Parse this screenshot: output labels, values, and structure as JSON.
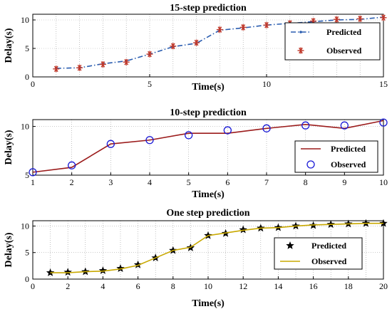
{
  "chart_data": [
    {
      "type": "line",
      "title": "15-step prediction",
      "xlabel": "Time(s)",
      "ylabel": "Delay(s)",
      "xlim": [
        0,
        15
      ],
      "ylim": [
        0,
        11
      ],
      "xticks": [
        0,
        5,
        10,
        15
      ],
      "yticks": [
        0,
        5,
        10
      ],
      "legend_position": "right",
      "series": [
        {
          "name": "Predicted",
          "color": "#2a5db0",
          "style": "dash-dot",
          "marker": "point",
          "x": [
            1,
            2,
            3,
            4,
            5,
            6,
            7,
            8,
            9,
            10,
            11,
            12,
            13,
            14,
            15
          ],
          "y": [
            1.5,
            1.6,
            2.3,
            2.8,
            4.0,
            5.3,
            5.9,
            8.2,
            8.6,
            9.1,
            9.4,
            9.7,
            10.0,
            10.1,
            10.5
          ]
        },
        {
          "name": "Observed",
          "color": "#c0392b",
          "style": "none",
          "marker": "asterisk",
          "x": [
            1,
            2,
            3,
            4,
            5,
            6,
            7,
            8,
            9,
            10,
            11,
            12,
            13,
            14,
            15
          ],
          "y": [
            1.4,
            1.6,
            2.2,
            2.6,
            4.0,
            5.4,
            6.0,
            8.3,
            8.7,
            9.1,
            9.4,
            9.8,
            10.1,
            10.2,
            10.4
          ]
        }
      ]
    },
    {
      "type": "line",
      "title": "10-step prediction",
      "xlabel": "Time(s)",
      "ylabel": "Delay(s)",
      "xlim": [
        1,
        10
      ],
      "ylim": [
        5,
        10.7
      ],
      "xticks": [
        1,
        2,
        3,
        4,
        5,
        6,
        7,
        8,
        9,
        10
      ],
      "yticks": [
        5,
        10
      ],
      "legend_position": "bottom-right",
      "series": [
        {
          "name": "Predicted",
          "color": "#9b1b1b",
          "style": "solid",
          "marker": "none",
          "x": [
            1,
            2,
            3,
            4,
            5,
            6,
            7,
            8,
            9,
            10
          ],
          "y": [
            5.3,
            5.8,
            8.2,
            8.6,
            9.3,
            9.3,
            9.8,
            10.2,
            9.8,
            10.6
          ]
        },
        {
          "name": "Observed",
          "color": "#1a1ad6",
          "style": "none",
          "marker": "circle",
          "x": [
            1,
            2,
            3,
            4,
            5,
            6,
            7,
            8,
            9,
            10
          ],
          "y": [
            5.3,
            6.0,
            8.2,
            8.6,
            9.1,
            9.6,
            9.8,
            10.1,
            10.1,
            10.4
          ]
        }
      ]
    },
    {
      "type": "line",
      "title": "One step prediction",
      "xlabel": "Time(s)",
      "ylabel": "Delay(s)",
      "xlim": [
        0,
        20
      ],
      "ylim": [
        0,
        11
      ],
      "xticks": [
        0,
        2,
        4,
        6,
        8,
        10,
        12,
        14,
        16,
        18,
        20
      ],
      "yticks": [
        0,
        5,
        10
      ],
      "legend_position": "right",
      "series": [
        {
          "name": "Predicted",
          "color": "#000000",
          "style": "none",
          "marker": "star",
          "x": [
            1,
            2,
            3,
            4,
            5,
            6,
            7,
            8,
            9,
            10,
            11,
            12,
            13,
            14,
            15,
            16,
            17,
            18,
            19,
            20
          ],
          "y": [
            1.2,
            1.3,
            1.4,
            1.6,
            2.0,
            2.7,
            4.0,
            5.4,
            5.9,
            8.2,
            8.6,
            9.3,
            9.6,
            9.7,
            10.0,
            10.1,
            10.3,
            10.4,
            10.5,
            10.5
          ]
        },
        {
          "name": "Observed",
          "color": "#c8a800",
          "style": "solid",
          "marker": "none",
          "x": [
            1,
            2,
            3,
            4,
            5,
            6,
            7,
            8,
            9,
            10,
            11,
            12,
            13,
            14,
            15,
            16,
            17,
            18,
            19,
            20
          ],
          "y": [
            1.2,
            1.2,
            1.4,
            1.5,
            1.9,
            2.6,
            4.0,
            5.4,
            6.0,
            8.2,
            8.7,
            9.2,
            9.6,
            9.7,
            10.0,
            10.2,
            10.3,
            10.4,
            10.5,
            10.5
          ]
        }
      ]
    }
  ]
}
